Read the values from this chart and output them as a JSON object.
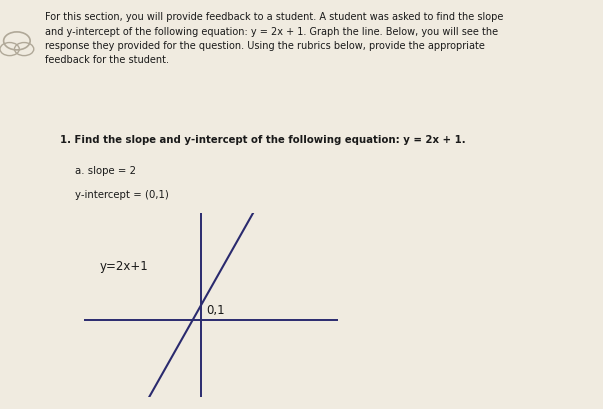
{
  "bg_color": "#f0ebe0",
  "text_color": "#1a1a1a",
  "dark_text": "#2a2a2a",
  "paragraph_text": "For this section, you will provide feedback to a student. A student was asked to find the slope\nand y-intercept of the following equation: y = 2x + 1. Graph the line. Below, you will see the\nresponse they provided for the question. Using the rubrics below, provide the appropriate\nfeedback for the student.",
  "question_text": "1. Find the slope and y-intercept of the following equation: y = 2x + 1.",
  "answer_slope": "a. slope = 2",
  "answer_intercept": "y-intercept = (0,1)",
  "graph_label": "y=2x+1",
  "graph_point_label": "0,1",
  "line_color": "#2a2a6e",
  "axis_color": "#2a2a6e",
  "slope": 4.5,
  "intercept": 1,
  "x_range": [
    -2.2,
    2.0
  ],
  "xlim": [
    -3.0,
    3.5
  ],
  "ylim": [
    -5,
    7
  ]
}
